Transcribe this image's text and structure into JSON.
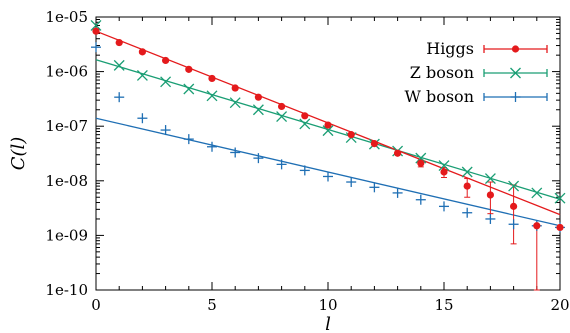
{
  "chart_data": {
    "type": "scatter",
    "xlabel": "l",
    "ylabel": "C(l)",
    "xlim": [
      0,
      20
    ],
    "ylim": [
      1e-10,
      1e-05
    ],
    "yscale": "log",
    "x_ticks": [
      0,
      5,
      10,
      15,
      20
    ],
    "x_tick_labels": [
      "0",
      "5",
      "10",
      "15",
      "20"
    ],
    "y_ticks": [
      1e-10,
      1e-09,
      1e-08,
      1e-07,
      1e-06,
      1e-05
    ],
    "y_tick_labels": [
      "1e-10",
      "1e-09",
      "1e-08",
      "1e-07",
      "1e-06",
      "1e-05"
    ],
    "grid": false,
    "legend_position": "top-right",
    "series": [
      {
        "name": "Higgs",
        "color": "#e41a1c",
        "marker": "circle",
        "x": [
          0,
          1,
          2,
          3,
          4,
          5,
          6,
          7,
          8,
          9,
          10,
          11,
          12,
          13,
          14,
          15,
          16,
          17,
          18,
          19,
          20
        ],
        "y": [
          5.5e-06,
          3.4e-06,
          2.3e-06,
          1.6e-06,
          1.1e-06,
          7.5e-07,
          5e-07,
          3.4e-07,
          2.3e-07,
          1.55e-07,
          1.05e-07,
          7e-08,
          4.8e-08,
          3.2e-08,
          2.1e-08,
          1.45e-08,
          8e-09,
          5.5e-09,
          3.4e-09,
          1.5e-09,
          1.4e-09
        ],
        "err_low": [
          null,
          null,
          null,
          null,
          null,
          null,
          null,
          null,
          null,
          null,
          null,
          null,
          null,
          null,
          3e-09,
          3e-09,
          3e-09,
          3e-09,
          2.7e-09,
          1.4e-09,
          null
        ],
        "err_high": [
          null,
          null,
          null,
          null,
          null,
          null,
          null,
          null,
          null,
          null,
          null,
          null,
          null,
          null,
          3e-09,
          3e-09,
          3e-09,
          4e-09,
          5e-09,
          null,
          null
        ],
        "fit": {
          "x": [
            0,
            20
          ],
          "y": [
            5.5e-06,
            2.4e-09
          ]
        }
      },
      {
        "name": "Z boson",
        "color": "#1a9e74",
        "marker": "x",
        "x": [
          0,
          1,
          2,
          3,
          4,
          5,
          6,
          7,
          8,
          9,
          10,
          11,
          12,
          13,
          14,
          15,
          16,
          17,
          18,
          19,
          20
        ],
        "y": [
          7e-06,
          1.3e-06,
          8.5e-07,
          6.5e-07,
          4.8e-07,
          3.6e-07,
          2.7e-07,
          2e-07,
          1.5e-07,
          1.1e-07,
          8.3e-08,
          6.2e-08,
          4.7e-08,
          3.5e-08,
          2.6e-08,
          1.9e-08,
          1.45e-08,
          1.1e-08,
          8e-09,
          6e-09,
          4.8e-09
        ],
        "fit": {
          "x": [
            0,
            20
          ],
          "y": [
            1.65e-06,
            4.6e-09
          ]
        }
      },
      {
        "name": "W boson",
        "color": "#1f6fb4",
        "marker": "plus",
        "x": [
          0,
          1,
          2,
          3,
          4,
          5,
          6,
          7,
          8,
          9,
          10,
          11,
          12,
          13,
          14,
          15,
          16,
          17,
          18,
          19,
          20
        ],
        "y": [
          2.8e-06,
          3.4e-07,
          1.4e-07,
          8.5e-08,
          5.8e-08,
          4.2e-08,
          3.3e-08,
          2.6e-08,
          2e-08,
          1.55e-08,
          1.2e-08,
          9.5e-09,
          7.6e-09,
          6e-09,
          4.5e-09,
          3.4e-09,
          2.6e-09,
          2e-09,
          1.6e-09,
          1.5e-09,
          1.4e-09
        ],
        "fit": {
          "x": [
            0,
            20
          ],
          "y": [
            1.4e-07,
            1.5e-09
          ]
        }
      }
    ]
  }
}
